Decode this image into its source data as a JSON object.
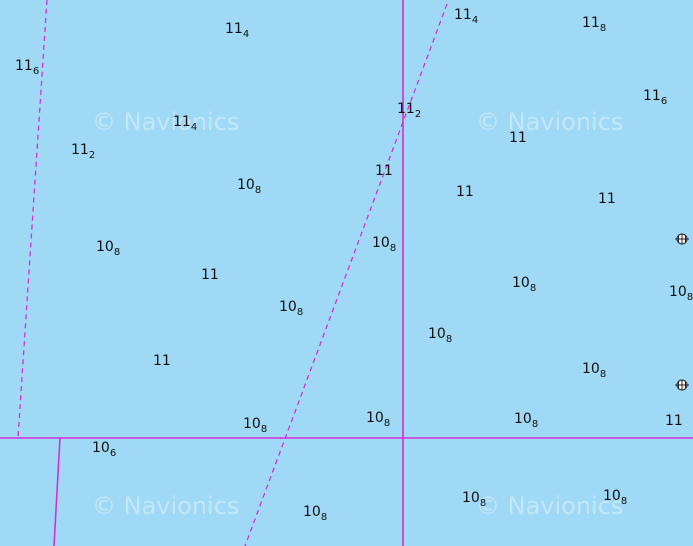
{
  "watermark_text": "© Navionics",
  "colors": {
    "water": "#9fd9f6",
    "boundary": "#d62ed6",
    "text": "#111111"
  },
  "icons": [
    "wreck-marker-icon",
    "wreck-marker-icon"
  ],
  "soundings": [
    {
      "whole": "11",
      "sub": "4"
    },
    {
      "whole": "11",
      "sub": "4"
    },
    {
      "whole": "11",
      "sub": "8"
    },
    {
      "whole": "11",
      "sub": "6"
    },
    {
      "whole": "11",
      "sub": "6"
    },
    {
      "whole": "11",
      "sub": "4"
    },
    {
      "whole": "11",
      "sub": "2"
    },
    {
      "whole": "11",
      "sub": "2"
    },
    {
      "whole": "11",
      "sub": ""
    },
    {
      "whole": "10",
      "sub": "8"
    },
    {
      "whole": "11",
      "sub": ""
    },
    {
      "whole": "11",
      "sub": ""
    },
    {
      "whole": "11",
      "sub": ""
    },
    {
      "whole": "10",
      "sub": "8"
    },
    {
      "whole": "10",
      "sub": "8"
    },
    {
      "whole": "11",
      "sub": ""
    },
    {
      "whole": "10",
      "sub": "8"
    },
    {
      "whole": "10",
      "sub": "8"
    },
    {
      "whole": "10",
      "sub": "8"
    },
    {
      "whole": "10",
      "sub": "8"
    },
    {
      "whole": "11",
      "sub": ""
    },
    {
      "whole": "10",
      "sub": "8"
    },
    {
      "whole": "10",
      "sub": "8"
    },
    {
      "whole": "10",
      "sub": "8"
    },
    {
      "whole": "10",
      "sub": "8"
    },
    {
      "whole": "11",
      "sub": ""
    },
    {
      "whole": "10",
      "sub": "6"
    },
    {
      "whole": "10",
      "sub": "8"
    },
    {
      "whole": "10",
      "sub": "8"
    },
    {
      "whole": "10",
      "sub": "8"
    }
  ]
}
